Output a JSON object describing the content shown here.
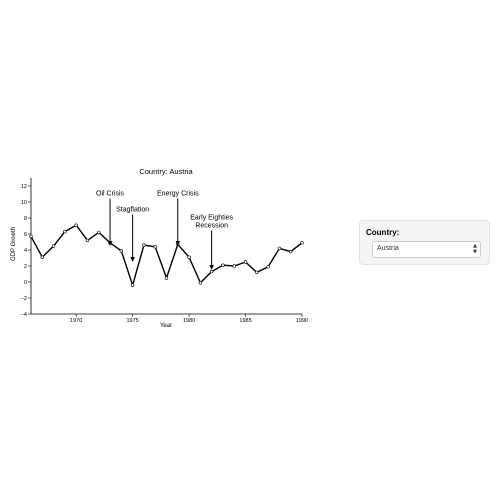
{
  "chart_data": {
    "type": "line",
    "title": "Country: Austria",
    "xlabel": "Year",
    "ylabel": "GDP Growth",
    "xlim": [
      1966,
      1990
    ],
    "ylim": [
      -4,
      13
    ],
    "xticks": [
      1970,
      1975,
      1980,
      1985,
      1990
    ],
    "yticks": [
      -4,
      -2,
      0,
      2,
      4,
      6,
      8,
      10,
      12
    ],
    "grid": false,
    "legend": "none",
    "line_color": "#000000",
    "x": [
      1966,
      1967,
      1968,
      1969,
      1970,
      1971,
      1972,
      1973,
      1974,
      1975,
      1976,
      1977,
      1978,
      1979,
      1980,
      1981,
      1982,
      1983,
      1984,
      1985,
      1986,
      1987,
      1988,
      1989,
      1990
    ],
    "series": [
      {
        "values": [
          5.7,
          3.1,
          4.5,
          6.3,
          7.1,
          5.2,
          6.2,
          4.9,
          3.9,
          -0.4,
          4.6,
          4.4,
          0.5,
          4.7,
          3.1,
          -0.1,
          1.3,
          2.1,
          2.0,
          2.5,
          1.2,
          1.9,
          4.2,
          3.8,
          4.9
        ]
      }
    ],
    "annotations": [
      {
        "text": "Oil Crisis",
        "x": 1973,
        "y": 4.5,
        "text_y": 10.8
      },
      {
        "text": "Stagflation",
        "x": 1975,
        "y": 2.5,
        "text_y": 8.8
      },
      {
        "text": "Energy Crisis",
        "x": 1979,
        "y": 4.5,
        "text_y": 10.8
      },
      {
        "text": "Early Eighties",
        "text2": "Recession",
        "x": 1982,
        "y": 1.5,
        "text_y": 7.8
      }
    ]
  },
  "sidebar": {
    "country_label": "Country:",
    "country_selected": "Austria"
  }
}
